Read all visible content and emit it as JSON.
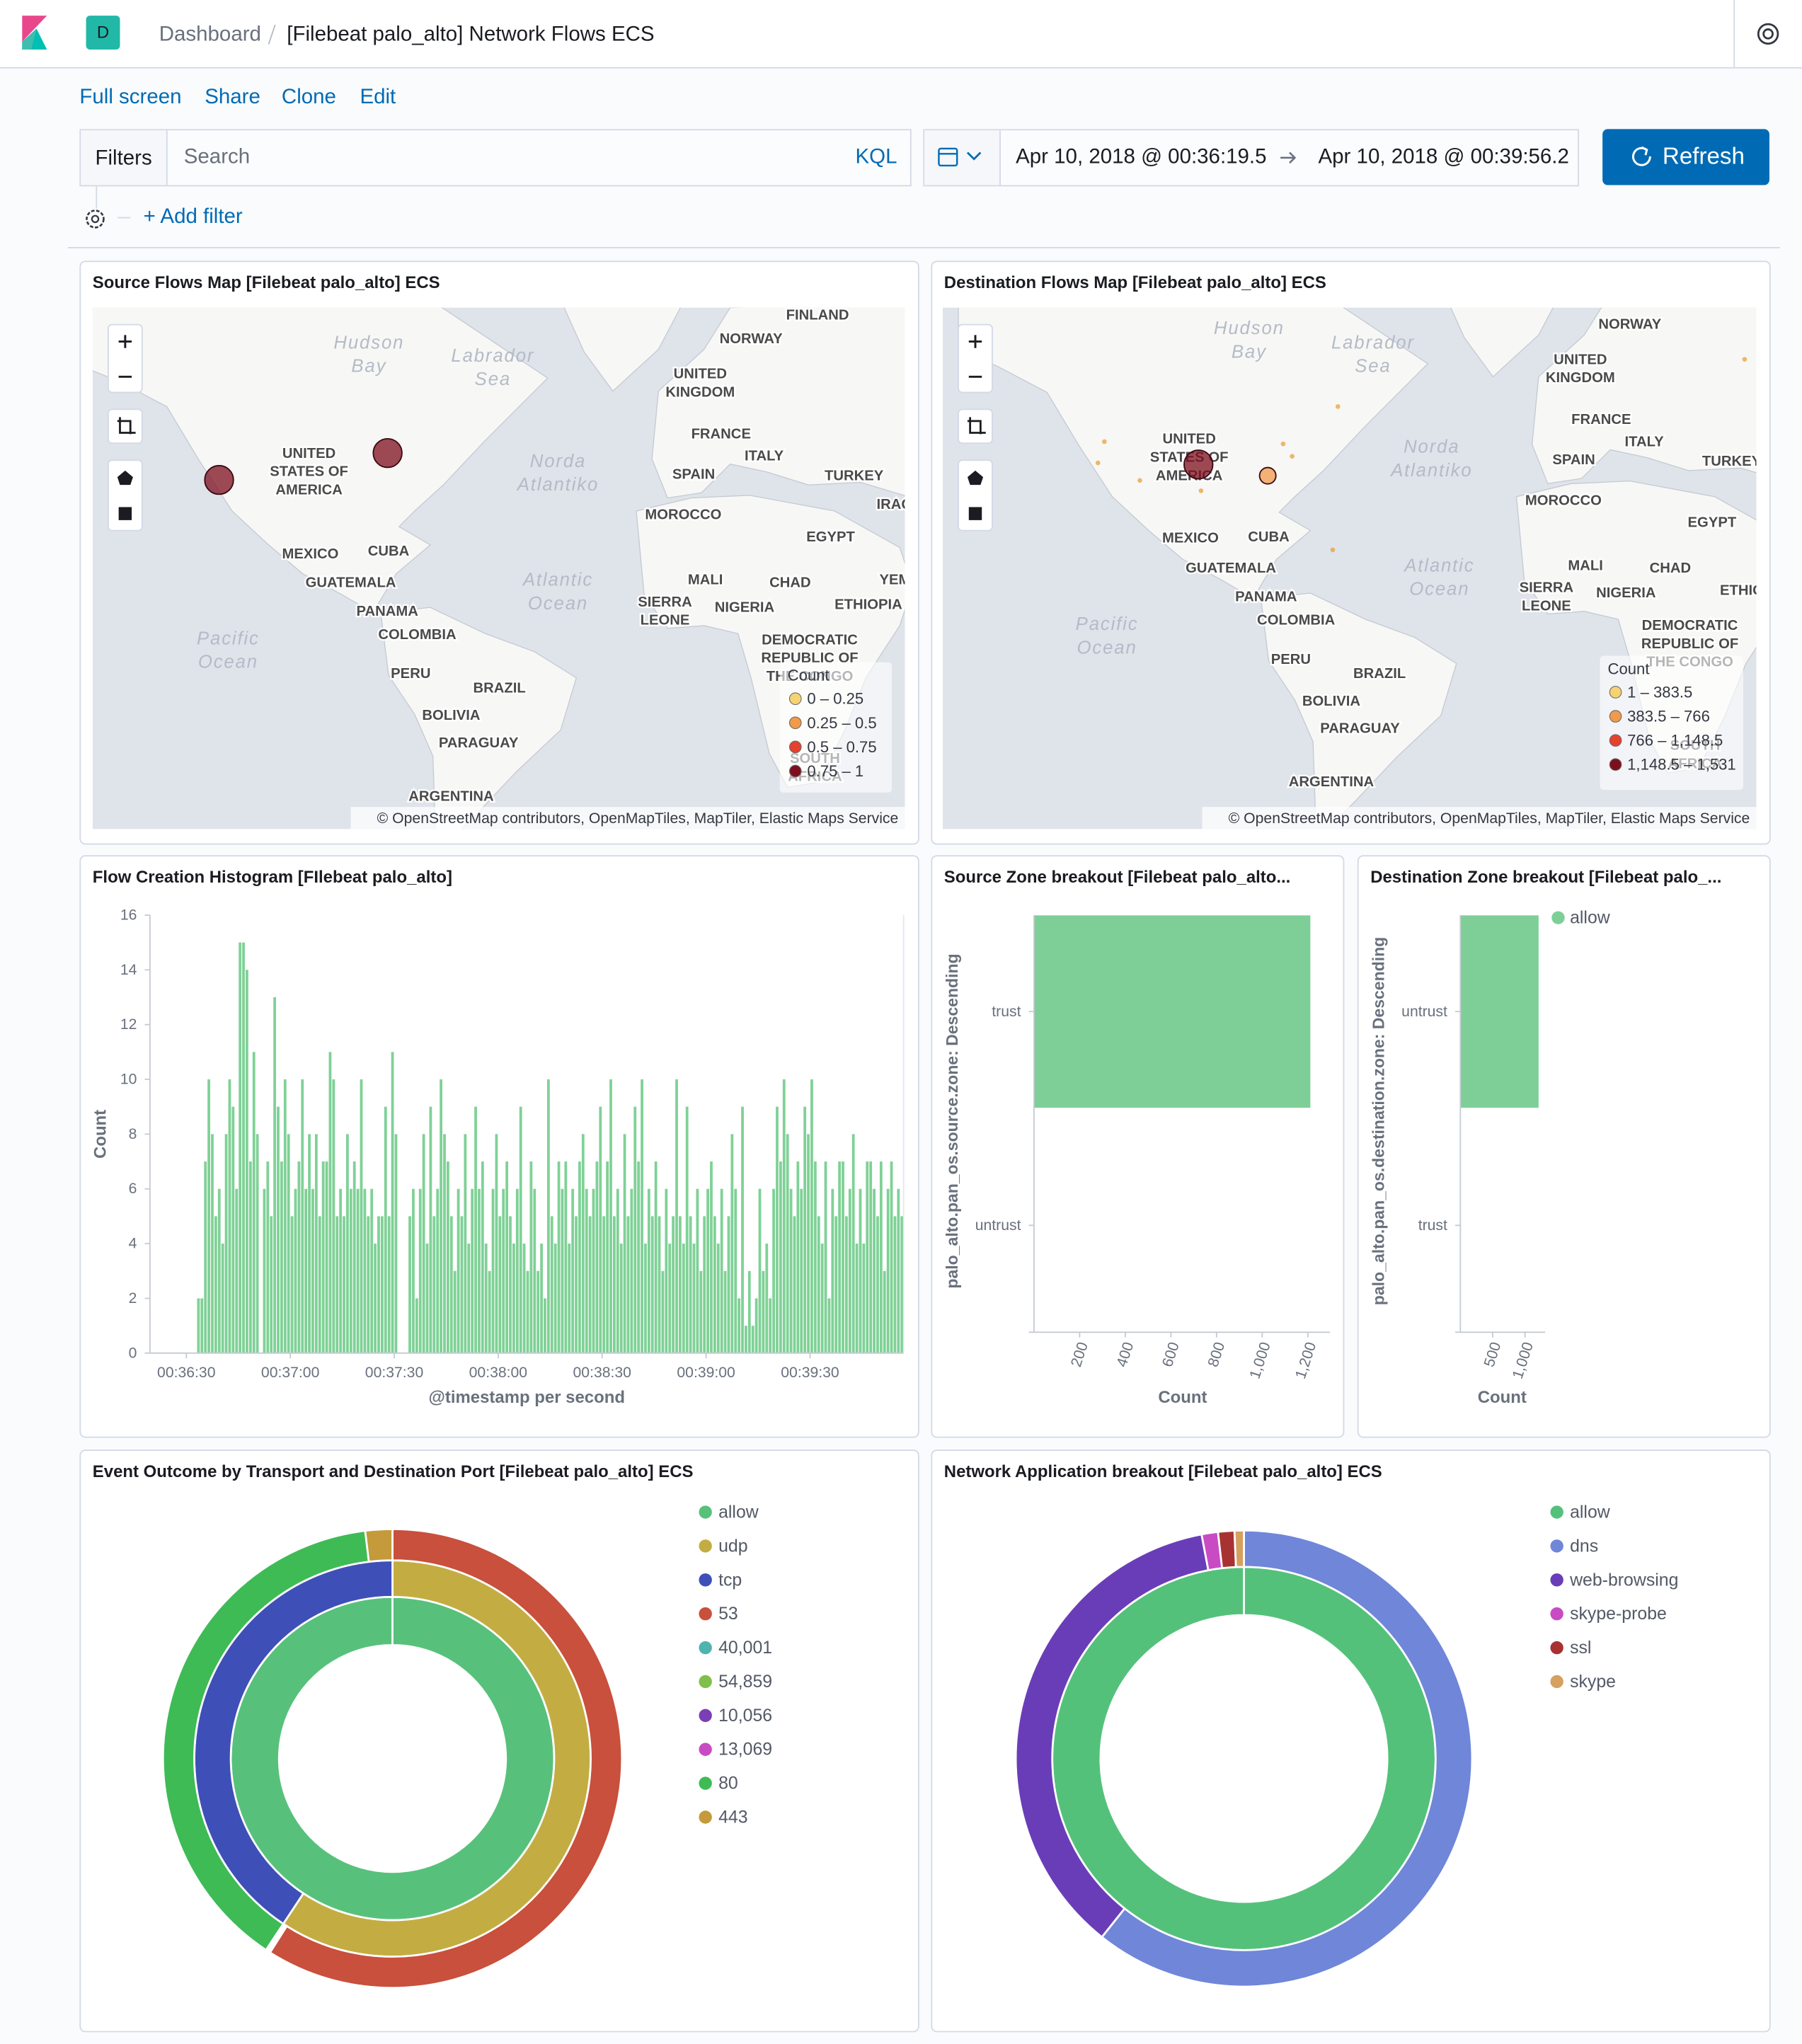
{
  "header": {
    "space": "D",
    "breadcrumb": [
      "Dashboard",
      "[Filebeat palo_alto] Network Flows ECS"
    ]
  },
  "top_nav": [
    "Full screen",
    "Share",
    "Clone",
    "Edit"
  ],
  "query_bar": {
    "filters": "Filters",
    "search": "Search",
    "language": "KQL",
    "start": "Apr 10, 2018 @ 00:36:19.5",
    "end": "Apr 10, 2018 @ 00:39:56.2",
    "refresh": "Refresh",
    "add_filter": "+ Add filter"
  },
  "chart_data": [
    {
      "type": "map",
      "title": "Source Flows Map [Filebeat palo_alto] ECS",
      "place_labels": [
        [
          "FINLAND"
        ],
        [
          "NORWAY"
        ],
        [
          "UNITED",
          "KINGDOM"
        ],
        [
          "FRANCE"
        ],
        [
          "ITALY"
        ],
        [
          "SPAIN"
        ],
        [
          "TURKEY"
        ],
        [
          "IRAQ"
        ],
        [
          "MOROCCO"
        ],
        [
          "EGYPT"
        ],
        [
          "UNITED",
          "STATES OF",
          "AMERICA"
        ],
        [
          "MEXICO"
        ],
        [
          "CUBA"
        ],
        [
          "GUATEMALA"
        ],
        [
          "PANAMA"
        ],
        [
          "COLOMBIA"
        ],
        [
          "MALI"
        ],
        [
          "CHAD"
        ],
        [
          "YEMEN"
        ],
        [
          "SIERRA",
          "LEONE"
        ],
        [
          "NIGERIA"
        ],
        [
          "ETHIOPIA"
        ],
        [
          "DEMOCRATIC",
          "REPUBLIC OF",
          "THE CONGO"
        ],
        [
          "PERU"
        ],
        [
          "BRAZIL"
        ],
        [
          "BOLIVIA"
        ],
        [
          "PARAGUAY"
        ],
        [
          "SOUTH",
          "AFRICA"
        ],
        [
          "ARGENTINA"
        ]
      ],
      "water_labels": [
        [
          "Hudson",
          "Bay"
        ],
        [
          "Labrador",
          "Sea"
        ],
        [
          "Norda",
          "Atlantiko"
        ],
        [
          "Atlantic",
          "Ocean"
        ],
        [
          "Pacific",
          "Ocean"
        ]
      ],
      "legend_title": "Count",
      "legend": [
        {
          "label": "0 – 0.25",
          "color": "#f6d372"
        },
        {
          "label": "0.25 – 0.5",
          "color": "#f19a4a"
        },
        {
          "label": "0.5 – 0.75",
          "color": "#e6402f"
        },
        {
          "label": "0.75 – 1",
          "color": "#7d0f1d"
        }
      ],
      "points": {
        "lat": [
          37.7,
          42.5
        ],
        "lon": [
          -122.4,
          -83.0
        ],
        "values": [
          1,
          1
        ],
        "colors": [
          "#7d0f1d",
          "#7d0f1d"
        ]
      },
      "attribution": "© OpenStreetMap contributors, OpenMapTiles, MapTiler, Elastic Maps Service"
    },
    {
      "type": "map",
      "title": "Destination Flows Map [Filebeat palo_alto] ECS",
      "place_labels": [
        [
          "NORWAY"
        ],
        [
          "UNITED",
          "KINGDOM"
        ],
        [
          "FRANCE"
        ],
        [
          "ITALY"
        ],
        [
          "SPAIN"
        ],
        [
          "TURKEY"
        ],
        [
          "MOROCCO"
        ],
        [
          "EGYPT"
        ],
        [
          "UNITED",
          "STATES OF",
          "AMERICA"
        ],
        [
          "MEXICO"
        ],
        [
          "CUBA"
        ],
        [
          "GUATEMALA"
        ],
        [
          "PANAMA"
        ],
        [
          "COLOMBIA"
        ],
        [
          "MALI"
        ],
        [
          "CHAD"
        ],
        [
          "SIERRA",
          "LEONE"
        ],
        [
          "NIGERIA"
        ],
        [
          "ETHIOPIA"
        ],
        [
          "DEMOCRATIC",
          "REPUBLIC OF",
          "THE CONGO"
        ],
        [
          "PERU"
        ],
        [
          "BRAZIL"
        ],
        [
          "BOLIVIA"
        ],
        [
          "PARAGUAY"
        ],
        [
          "SOUTH",
          "AFRICA"
        ],
        [
          "ARGENTINA"
        ]
      ],
      "water_labels": [
        [
          "Hudson",
          "Bay"
        ],
        [
          "Labrador",
          "Sea"
        ],
        [
          "Norda",
          "Atlantiko"
        ],
        [
          "Atlantic",
          "Ocean"
        ],
        [
          "Pacific",
          "Ocean"
        ]
      ],
      "legend_title": "Count",
      "legend": [
        {
          "label": "1 – 383.5",
          "color": "#f6d372"
        },
        {
          "label": "383.5 – 766",
          "color": "#f19a4a"
        },
        {
          "label": "766 – 1,148.5",
          "color": "#e6402f"
        },
        {
          "label": "1,148.5 – 1,531",
          "color": "#7d0f1d"
        }
      ],
      "points": {
        "lat": [
          37.9,
          35.8,
          38.2,
          42.0,
          34.9,
          32.9,
          41.6,
          39.4,
          47.8,
          20.6,
          54.7
        ],
        "lon": [
          -99.2,
          -83.0,
          -122.7,
          -121.2,
          -112.9,
          -98.6,
          -79.4,
          -77.3,
          -66.6,
          -67.8,
          28.5
        ],
        "values": [
          1531,
          500,
          1,
          1,
          1,
          1,
          1,
          1,
          1,
          1,
          1
        ],
        "colors": [
          "#7d0f1d",
          "#f19a4a",
          "#e8a23a",
          "#e8a23a",
          "#e8a23a",
          "#e8a23a",
          "#e8a23a",
          "#e8a23a",
          "#e8a23a",
          "#e8a23a",
          "#e8a23a"
        ]
      },
      "attribution": "© OpenStreetMap contributors, OpenMapTiles, MapTiler, Elastic Maps Service"
    },
    {
      "type": "histogram",
      "title": "Flow Creation Histogram [FIlebeat palo_alto]",
      "x_label": "@timestamp per second",
      "y_label": "Count",
      "color": "#7fd196",
      "xlim": [
        2179.5,
        2397
      ],
      "ylim": [
        0,
        16
      ],
      "xticks": [
        {
          "value": 2190,
          "label": "00:36:30"
        },
        {
          "value": 2220,
          "label": "00:37:00"
        },
        {
          "value": 2250,
          "label": "00:37:30"
        },
        {
          "value": 2280,
          "label": "00:38:00"
        },
        {
          "value": 2310,
          "label": "00:38:30"
        },
        {
          "value": 2340,
          "label": "00:39:00"
        },
        {
          "value": 2370,
          "label": "00:39:30"
        }
      ],
      "yticks": [
        0,
        2,
        4,
        6,
        8,
        10,
        12,
        14,
        16
      ],
      "x": [
        2193,
        2194,
        2195,
        2196,
        2197,
        2198,
        2199,
        2200,
        2201,
        2202,
        2203,
        2204,
        2205,
        2206,
        2207,
        2208,
        2209,
        2210,
        2211,
        2212,
        2213,
        2214,
        2215,
        2216,
        2217,
        2218,
        2219,
        2220,
        2221,
        2222,
        2223,
        2224,
        2225,
        2226,
        2227,
        2228,
        2229,
        2230,
        2231,
        2232,
        2233,
        2234,
        2235,
        2236,
        2237,
        2238,
        2239,
        2240,
        2241,
        2242,
        2243,
        2244,
        2245,
        2246,
        2247,
        2248,
        2249,
        2250,
        2251,
        2252,
        2253,
        2254,
        2255,
        2256,
        2257,
        2258,
        2259,
        2260,
        2261,
        2262,
        2263,
        2264,
        2265,
        2266,
        2267,
        2268,
        2269,
        2270,
        2271,
        2272,
        2273,
        2274,
        2275,
        2276,
        2277,
        2278,
        2279,
        2280,
        2281,
        2282,
        2283,
        2284,
        2285,
        2286,
        2287,
        2288,
        2289,
        2290,
        2291,
        2292,
        2293,
        2294,
        2295,
        2296,
        2297,
        2298,
        2299,
        2300,
        2301,
        2302,
        2303,
        2304,
        2305,
        2306,
        2307,
        2308,
        2309,
        2310,
        2311,
        2312,
        2313,
        2314,
        2315,
        2316,
        2317,
        2318,
        2319,
        2320,
        2321,
        2322,
        2323,
        2324,
        2325,
        2326,
        2327,
        2328,
        2329,
        2330,
        2331,
        2332,
        2333,
        2334,
        2335,
        2336,
        2337,
        2338,
        2339,
        2340,
        2341,
        2342,
        2343,
        2344,
        2345,
        2346,
        2347,
        2348,
        2349,
        2350,
        2351,
        2352,
        2353,
        2354,
        2355,
        2356,
        2357,
        2358,
        2359,
        2360,
        2361,
        2362,
        2363,
        2364,
        2365,
        2366,
        2367,
        2368,
        2369,
        2370,
        2371,
        2372,
        2373,
        2374,
        2375,
        2376,
        2377,
        2378,
        2379,
        2380,
        2381,
        2382,
        2383,
        2384,
        2385,
        2386,
        2387,
        2388,
        2389,
        2390,
        2391,
        2392,
        2393,
        2394,
        2395,
        2396
      ],
      "values": [
        2,
        2,
        7,
        10,
        8,
        5,
        6,
        4,
        8,
        10,
        9,
        6,
        15,
        15,
        14,
        7,
        11,
        8,
        0,
        6,
        7,
        5,
        13,
        9,
        7,
        10,
        8,
        5,
        6,
        7,
        10,
        6,
        8,
        6,
        8,
        5,
        7,
        7,
        11,
        10,
        5,
        6,
        5,
        8,
        6,
        7,
        6,
        10,
        6,
        5,
        6,
        4,
        5,
        5,
        9,
        5,
        11,
        8,
        0,
        0,
        0,
        5,
        6,
        2,
        6,
        8,
        4,
        9,
        5,
        6,
        10,
        8,
        7,
        5,
        3,
        6,
        5,
        8,
        4,
        6,
        9,
        6,
        7,
        4,
        3,
        6,
        8,
        5,
        6,
        7,
        5,
        4,
        6,
        9,
        4,
        3,
        7,
        6,
        3,
        4,
        2,
        10,
        5,
        4,
        7,
        6,
        7,
        4,
        6,
        5,
        7,
        8,
        6,
        5,
        6,
        7,
        9,
        5,
        7,
        10,
        5,
        6,
        4,
        8,
        5,
        6,
        9,
        7,
        10,
        4,
        6,
        5,
        7,
        5,
        3,
        6,
        4,
        5,
        10,
        5,
        4,
        9,
        5,
        4,
        6,
        3,
        5,
        6,
        7,
        5,
        4,
        6,
        3,
        5,
        8,
        6,
        2,
        9,
        1,
        3,
        1,
        2,
        6,
        3,
        4,
        2,
        6,
        9,
        7,
        10,
        8,
        6,
        5,
        7,
        6,
        9,
        8,
        10,
        7,
        5,
        4,
        7,
        2,
        6,
        5,
        7,
        7,
        5,
        6,
        8,
        4,
        6,
        4,
        7,
        7,
        6,
        5,
        7,
        3,
        6,
        7,
        5,
        6,
        5
      ]
    },
    {
      "type": "hbar",
      "title": "Source Zone breakout [Filebeat palo_alto...",
      "x_label": "Count",
      "y_label": "palo_alto.pan_os.source.zone: Descending",
      "categories": [
        "trust",
        "untrust"
      ],
      "values": [
        1211,
        0
      ],
      "color": "#7ecf97",
      "xlim": [
        0,
        1297
      ],
      "xticks": [
        200,
        400,
        600,
        800,
        {
          "value": 1000,
          "label": "1,000"
        },
        {
          "value": 1200,
          "label": "1,200"
        }
      ]
    },
    {
      "type": "hbar",
      "title": "Destination Zone breakout [Filebeat palo_...",
      "x_label": "Count",
      "y_label": "palo_alto.pan_os.destination.zone: Descending",
      "categories": [
        "untrust",
        "trust"
      ],
      "series": [
        {
          "name": "allow",
          "color": "#7ecf97",
          "values": [
            1211,
            0
          ]
        }
      ],
      "xlim": [
        0,
        1312
      ],
      "xticks": [
        500,
        {
          "value": 1000,
          "label": "1,000"
        }
      ]
    },
    {
      "type": "sunburst",
      "title": "Event Outcome by Transport and Destination Port [Filebeat palo_alto] ECS",
      "series": [
        {
          "name": "allow",
          "color": "#57c17b",
          "ring": 0,
          "value": 1211
        },
        {
          "name": "udp",
          "color": "#c3ad43",
          "ring": 1,
          "value": 718
        },
        {
          "name": "tcp",
          "color": "#3f4fb8",
          "ring": 1,
          "value": 493
        },
        {
          "name": "53",
          "color": "#c8503c",
          "ring": 2,
          "value": 714
        },
        {
          "name": "40,001",
          "color": "#4fb3b0",
          "ring": 2,
          "value": 1
        },
        {
          "name": "54,859",
          "color": "#7fbf4a",
          "ring": 2,
          "value": 1
        },
        {
          "name": "10,056",
          "color": "#7b3fb5",
          "ring": 2,
          "value": 1
        },
        {
          "name": "13,069",
          "color": "#c94bc4",
          "ring": 2,
          "value": 1
        },
        {
          "name": "80",
          "color": "#3ebb55",
          "ring": 2,
          "value": 470
        },
        {
          "name": "443",
          "color": "#c49a3a",
          "ring": 2,
          "value": 23
        }
      ]
    },
    {
      "type": "sunburst",
      "title": "Network Application breakout [Filebeat palo_alto] ECS",
      "series": [
        {
          "name": "allow",
          "color": "#54c17b",
          "ring": 0,
          "value": 1211
        },
        {
          "name": "dns",
          "color": "#6f86d9",
          "ring": 1,
          "value": 735
        },
        {
          "name": "web-browsing",
          "color": "#6a3db8",
          "ring": 1,
          "value": 440
        },
        {
          "name": "skype-probe",
          "color": "#c94bc4",
          "ring": 1,
          "value": 14
        },
        {
          "name": "ssl",
          "color": "#a83232",
          "ring": 1,
          "value": 14
        },
        {
          "name": "skype",
          "color": "#d6a060",
          "ring": 1,
          "value": 8
        }
      ]
    }
  ]
}
